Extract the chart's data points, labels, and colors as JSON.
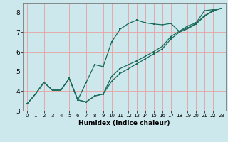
{
  "title": "",
  "xlabel": "Humidex (Indice chaleur)",
  "bg_color": "#cce8ec",
  "grid_color": "#e8a0a0",
  "line_color": "#1a6b5a",
  "xlim": [
    -0.5,
    23.5
  ],
  "ylim": [
    3.0,
    8.5
  ],
  "xticks": [
    0,
    1,
    2,
    3,
    4,
    5,
    6,
    7,
    8,
    9,
    10,
    11,
    12,
    13,
    14,
    15,
    16,
    17,
    18,
    19,
    20,
    21,
    22,
    23
  ],
  "yticks": [
    3,
    4,
    5,
    6,
    7,
    8
  ],
  "line1_x": [
    0,
    1,
    2,
    3,
    4,
    5,
    6,
    7,
    8,
    9,
    10,
    11,
    12,
    13,
    14,
    15,
    16,
    17,
    18,
    19,
    20,
    21,
    22,
    23
  ],
  "line1_y": [
    3.35,
    3.85,
    4.45,
    4.05,
    4.05,
    4.65,
    3.55,
    4.45,
    5.35,
    5.25,
    6.5,
    7.15,
    7.45,
    7.62,
    7.48,
    7.42,
    7.38,
    7.45,
    7.05,
    7.32,
    7.48,
    8.1,
    8.15,
    8.22
  ],
  "line2_x": [
    0,
    1,
    2,
    3,
    4,
    5,
    6,
    7,
    8,
    9,
    10,
    11,
    12,
    13,
    14,
    15,
    16,
    17,
    18,
    19,
    20,
    21,
    22,
    23
  ],
  "line2_y": [
    3.35,
    3.85,
    4.45,
    4.05,
    4.05,
    4.65,
    3.55,
    3.45,
    3.75,
    3.85,
    4.5,
    4.9,
    5.15,
    5.4,
    5.65,
    5.9,
    6.15,
    6.65,
    7.0,
    7.18,
    7.42,
    7.82,
    8.08,
    8.22
  ],
  "line3_x": [
    0,
    1,
    2,
    3,
    4,
    5,
    6,
    7,
    8,
    9,
    10,
    11,
    12,
    13,
    14,
    15,
    16,
    17,
    18,
    19,
    20,
    21,
    22,
    23
  ],
  "line3_y": [
    3.35,
    3.85,
    4.45,
    4.05,
    4.05,
    4.65,
    3.55,
    3.45,
    3.75,
    3.85,
    4.75,
    5.15,
    5.35,
    5.55,
    5.78,
    6.02,
    6.28,
    6.78,
    7.05,
    7.22,
    7.45,
    7.85,
    8.1,
    8.22
  ]
}
